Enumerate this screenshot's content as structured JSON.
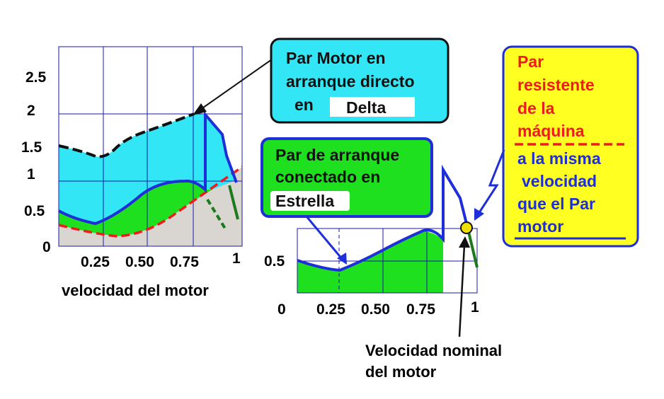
{
  "left_chart": {
    "x_ticks": [
      "0.25",
      "0.50",
      "0.75",
      "1"
    ],
    "y_ticks": [
      "0",
      "0.5",
      "1",
      "1.5",
      "2",
      "2.5"
    ],
    "xlabel": "velocidad del motor"
  },
  "right_chart": {
    "x_ticks": [
      "0.25",
      "0.50",
      "0.75",
      "1"
    ],
    "y_ticks": [
      "0",
      "0.5"
    ]
  },
  "callouts": {
    "delta": {
      "line1": "Par Motor en",
      "line2": "arranque directo",
      "line3": "en",
      "tag": "Delta"
    },
    "estrella": {
      "line1": "Par de arranque",
      "line2": "conectado en",
      "tag": "Estrella"
    },
    "resistente": {
      "red1": "Par",
      "red2": "resistente",
      "red3": "de  la",
      "red4": "máquina",
      "blue1": "a la misma",
      "blue2": "velocidad",
      "blue3": "que el   Par",
      "blue4": "motor"
    },
    "nominal": {
      "line1": "Velocidad nominal",
      "line2": "del motor"
    }
  },
  "colors": {
    "delta_fill": "#33e6f5",
    "estrella_fill": "#1ee01e",
    "resistente_fill": "#ffff22",
    "curve_blue": "#1e2ed8",
    "load_red": "#ee1c1c",
    "load_green": "#1c7a1c",
    "grey_fill": "#d9d6d2",
    "box_border": "#1a1aaa",
    "nominal_point": "#f0e000"
  }
}
